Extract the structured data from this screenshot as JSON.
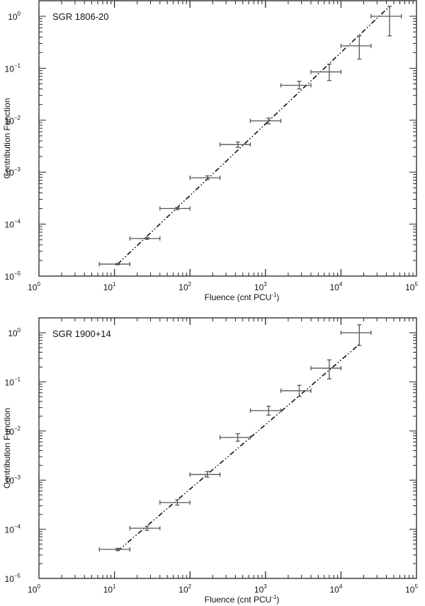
{
  "chart_data": [
    {
      "type": "scatter",
      "title": "SGR 1806-20",
      "xlabel": "Fluence (cnt PCU⁻¹)",
      "ylabel": "Contribution Function",
      "xscale": "log",
      "yscale": "log",
      "xlim": [
        1,
        100000
      ],
      "ylim": [
        1e-05,
        2
      ],
      "x_ticks": [
        "10⁰",
        "10¹",
        "10²",
        "10³",
        "10⁴",
        "10⁵"
      ],
      "y_ticks": [
        "10⁰",
        "10⁻¹",
        "10⁻²",
        "10⁻³",
        "10⁻⁴",
        "10⁻⁵"
      ],
      "series": [
        {
          "name": "data",
          "points": [
            {
              "x": 11,
              "y": 1.7e-05,
              "xerr": [
                6.3,
                16
              ],
              "yerr": [
                1.65e-05,
                1.75e-05
              ]
            },
            {
              "x": 27,
              "y": 5.3e-05,
              "xerr": [
                16,
                40
              ],
              "yerr": [
                5.1e-05,
                5.5e-05
              ]
            },
            {
              "x": 68,
              "y": 0.0002,
              "xerr": [
                40,
                100
              ],
              "yerr": [
                0.00019,
                0.00021
              ]
            },
            {
              "x": 170,
              "y": 0.00078,
              "xerr": [
                100,
                250
              ],
              "yerr": [
                0.00072,
                0.00085
              ]
            },
            {
              "x": 430,
              "y": 0.0034,
              "xerr": [
                250,
                630
              ],
              "yerr": [
                0.003,
                0.0038
              ]
            },
            {
              "x": 1100,
              "y": 0.0097,
              "xerr": [
                630,
                1600
              ],
              "yerr": [
                0.0085,
                0.011
              ]
            },
            {
              "x": 2800,
              "y": 0.047,
              "xerr": [
                1600,
                4000
              ],
              "yerr": [
                0.04,
                0.056
              ]
            },
            {
              "x": 7000,
              "y": 0.085,
              "xerr": [
                4000,
                10000
              ],
              "yerr": [
                0.058,
                0.12
              ]
            },
            {
              "x": 17500,
              "y": 0.27,
              "xerr": [
                10000,
                25000
              ],
              "yerr": [
                0.15,
                0.42
              ]
            },
            {
              "x": 44000,
              "y": 1.0,
              "xerr": [
                25000,
                63000
              ],
              "yerr": [
                0.42,
                1.55
              ]
            }
          ]
        },
        {
          "name": "fit",
          "style": "dash-dot-dot",
          "x": [
            11,
            44000
          ],
          "y": [
            1.7e-05,
            1.55
          ]
        }
      ]
    },
    {
      "type": "scatter",
      "title": "SGR 1900+14",
      "xlabel": "Fluence (cnt PCU⁻¹)",
      "ylabel": "Contribution Function",
      "xscale": "log",
      "yscale": "log",
      "xlim": [
        1,
        100000
      ],
      "ylim": [
        1e-05,
        2
      ],
      "x_ticks": [
        "10⁰",
        "10¹",
        "10²",
        "10³",
        "10⁴",
        "10⁵"
      ],
      "y_ticks": [
        "10⁰",
        "10⁻¹",
        "10⁻²",
        "10⁻³",
        "10⁻⁴",
        "10⁻⁵"
      ],
      "series": [
        {
          "name": "data",
          "points": [
            {
              "x": 11,
              "y": 3.9e-05,
              "xerr": [
                6.3,
                16
              ],
              "yerr": [
                3.7e-05,
                4.1e-05
              ]
            },
            {
              "x": 27,
              "y": 0.000105,
              "xerr": [
                16,
                40
              ],
              "yerr": [
                9.5e-05,
                0.000115
              ]
            },
            {
              "x": 68,
              "y": 0.00035,
              "xerr": [
                40,
                100
              ],
              "yerr": [
                0.00031,
                0.0004
              ]
            },
            {
              "x": 170,
              "y": 0.0013,
              "xerr": [
                100,
                250
              ],
              "yerr": [
                0.00115,
                0.0015
              ]
            },
            {
              "x": 430,
              "y": 0.0074,
              "xerr": [
                250,
                630
              ],
              "yerr": [
                0.0062,
                0.0088
              ]
            },
            {
              "x": 1100,
              "y": 0.026,
              "xerr": [
                630,
                1600
              ],
              "yerr": [
                0.021,
                0.032
              ]
            },
            {
              "x": 2800,
              "y": 0.066,
              "xerr": [
                1600,
                4000
              ],
              "yerr": [
                0.05,
                0.085
              ]
            },
            {
              "x": 7000,
              "y": 0.19,
              "xerr": [
                4000,
                10000
              ],
              "yerr": [
                0.115,
                0.28
              ]
            },
            {
              "x": 17500,
              "y": 1.0,
              "xerr": [
                10000,
                25000
              ],
              "yerr": [
                0.55,
                1.45
              ]
            }
          ]
        },
        {
          "name": "fit",
          "style": "dash-dot-dot",
          "x": [
            11,
            17500
          ],
          "y": [
            3.6e-05,
            0.58
          ]
        }
      ]
    }
  ],
  "panels": [
    {
      "title": "SGR 1806-20",
      "xlabel": "Fluence (cnt PCU",
      "xlabel_sup": "-1",
      "xlabel_close": ")",
      "ylabel": "Contribution Function"
    },
    {
      "title": "SGR 1900+14",
      "xlabel": "Fluence (cnt PCU",
      "xlabel_sup": "-1",
      "xlabel_close": ")",
      "ylabel": "Contribution Function"
    }
  ],
  "tick_labels": {
    "x": [
      {
        "base": "10",
        "exp": "0"
      },
      {
        "base": "10",
        "exp": "1"
      },
      {
        "base": "10",
        "exp": "2"
      },
      {
        "base": "10",
        "exp": "3"
      },
      {
        "base": "10",
        "exp": "4"
      },
      {
        "base": "10",
        "exp": "5"
      }
    ],
    "y": [
      {
        "base": "10",
        "exp": "0"
      },
      {
        "base": "10",
        "exp": "-1"
      },
      {
        "base": "10",
        "exp": "-2"
      },
      {
        "base": "10",
        "exp": "-3"
      },
      {
        "base": "10",
        "exp": "-4"
      },
      {
        "base": "10",
        "exp": "-5"
      }
    ]
  },
  "colors": {
    "axis": "#222222",
    "data": "#555555",
    "fit": "#111111"
  }
}
